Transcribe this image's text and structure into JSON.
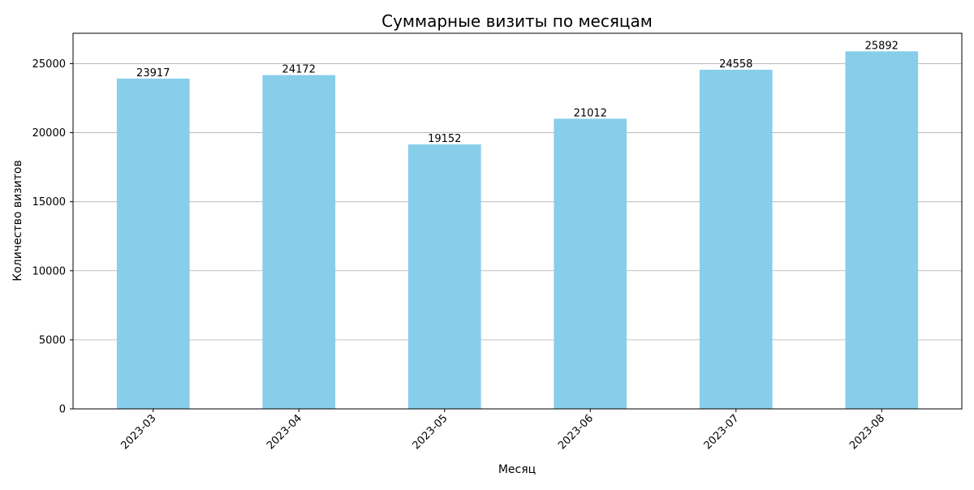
{
  "chart_data": {
    "type": "bar",
    "title": "Суммарные визиты по месяцам",
    "xlabel": "Месяц",
    "ylabel": "Количество визитов",
    "categories": [
      "2023-03",
      "2023-04",
      "2023-05",
      "2023-06",
      "2023-07",
      "2023-08"
    ],
    "values": [
      23917,
      24172,
      19152,
      21012,
      24558,
      25892
    ],
    "ylim": [
      0,
      27200
    ],
    "yticks": [
      0,
      5000,
      10000,
      15000,
      20000,
      25000
    ],
    "ytick_labels": [
      "0",
      "5000",
      "10000",
      "15000",
      "20000",
      "25000"
    ],
    "grid": "y-major",
    "legend": "none",
    "colors": {
      "bar": "#87ceeb",
      "grid": "#b0b0b0",
      "axis": "#000000",
      "text": "#000000"
    }
  }
}
